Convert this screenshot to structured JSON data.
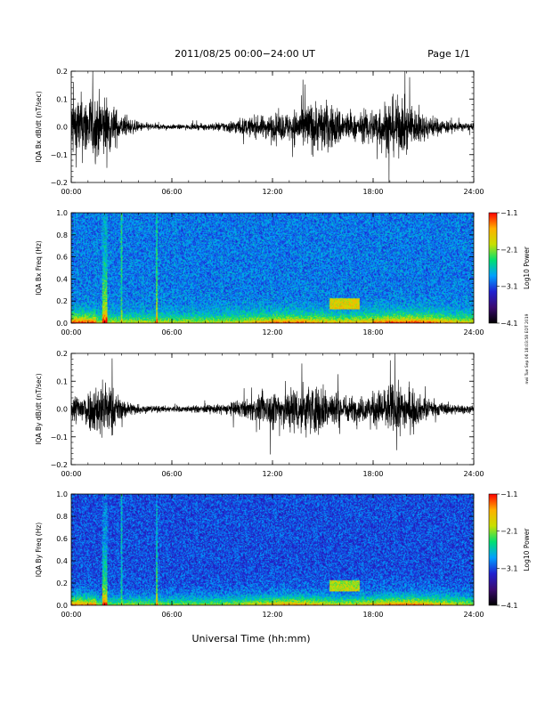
{
  "header": {
    "title": "2011/08/25  00:00−24:00 UT",
    "page_label": "Page 1/1"
  },
  "footer": {
    "xlabel": "Universal Time (hh:mm)",
    "timestamp": "nwi Tue Sep 06 18:03:58 EDT 2019"
  },
  "colors": {
    "trace": "#000000",
    "colormap": [
      "#000000",
      "#3a0a70",
      "#2020d0",
      "#00a0ff",
      "#00e070",
      "#c8e000",
      "#ffb000",
      "#ff0000"
    ]
  },
  "chart_data": [
    {
      "type": "line",
      "id": "bx_trace",
      "ylabel": "IQA Bx dB/dt (nT/sec)",
      "x_ticks": [
        "00:00",
        "06:00",
        "12:00",
        "18:00",
        "24:00"
      ],
      "y_ticks": [
        "0.2",
        "0.1",
        "0.0",
        "−0.1",
        "−0.2"
      ],
      "ylim": [
        -0.2,
        0.2
      ],
      "xlim_hours": [
        0,
        24
      ],
      "activity_hours": [
        0,
        1,
        2,
        3,
        4,
        5,
        6,
        7,
        8,
        9,
        10,
        11,
        12,
        13,
        14,
        15,
        16,
        17,
        18,
        19,
        20,
        21,
        22,
        23,
        24
      ],
      "activity_amplitude": [
        0.2,
        0.2,
        0.2,
        0.07,
        0.03,
        0.02,
        0.015,
        0.015,
        0.02,
        0.03,
        0.05,
        0.06,
        0.08,
        0.09,
        0.15,
        0.16,
        0.12,
        0.07,
        0.12,
        0.18,
        0.16,
        0.08,
        0.05,
        0.03,
        0.02
      ]
    },
    {
      "type": "heatmap",
      "id": "bx_spectrogram",
      "ylabel": "IQA Bx Freq (Hz)",
      "x_ticks": [
        "00:00",
        "06:00",
        "12:00",
        "18:00",
        "24:00"
      ],
      "y_ticks": [
        "1.0",
        "0.8",
        "0.6",
        "0.4",
        "0.2",
        "0.0"
      ],
      "ylim": [
        0,
        1.0
      ],
      "colorbar": {
        "label": "Log10 Power",
        "ticks": [
          "−1.1",
          "−2.1",
          "−3.1",
          "−4.1"
        ],
        "range": [
          -4.1,
          -1.1
        ]
      }
    },
    {
      "type": "line",
      "id": "by_trace",
      "ylabel": "IQA By dB/dt (nT/sec)",
      "x_ticks": [
        "00:00",
        "06:00",
        "12:00",
        "18:00",
        "24:00"
      ],
      "y_ticks": [
        "0.2",
        "0.1",
        "0.0",
        "−0.1",
        "−0.2"
      ],
      "ylim": [
        -0.2,
        0.2
      ],
      "xlim_hours": [
        0,
        24
      ],
      "activity_hours": [
        0,
        1,
        2,
        3,
        4,
        5,
        6,
        7,
        8,
        9,
        10,
        11,
        12,
        13,
        14,
        15,
        16,
        17,
        18,
        19,
        20,
        21,
        22,
        23,
        24
      ],
      "activity_amplitude": [
        0.08,
        0.12,
        0.2,
        0.06,
        0.03,
        0.02,
        0.02,
        0.02,
        0.025,
        0.03,
        0.05,
        0.07,
        0.12,
        0.14,
        0.16,
        0.15,
        0.1,
        0.07,
        0.1,
        0.16,
        0.14,
        0.07,
        0.04,
        0.03,
        0.02
      ]
    },
    {
      "type": "heatmap",
      "id": "by_spectrogram",
      "ylabel": "IQA By Freq (Hz)",
      "x_ticks": [
        "00:00",
        "06:00",
        "12:00",
        "18:00",
        "24:00"
      ],
      "y_ticks": [
        "1.0",
        "0.8",
        "0.6",
        "0.4",
        "0.2",
        "0.0"
      ],
      "ylim": [
        0,
        1.0
      ],
      "colorbar": {
        "label": "Log10 Power",
        "ticks": [
          "−1.1",
          "−2.1",
          "−3.1",
          "−4.1"
        ],
        "range": [
          -4.1,
          -1.1
        ]
      }
    }
  ]
}
